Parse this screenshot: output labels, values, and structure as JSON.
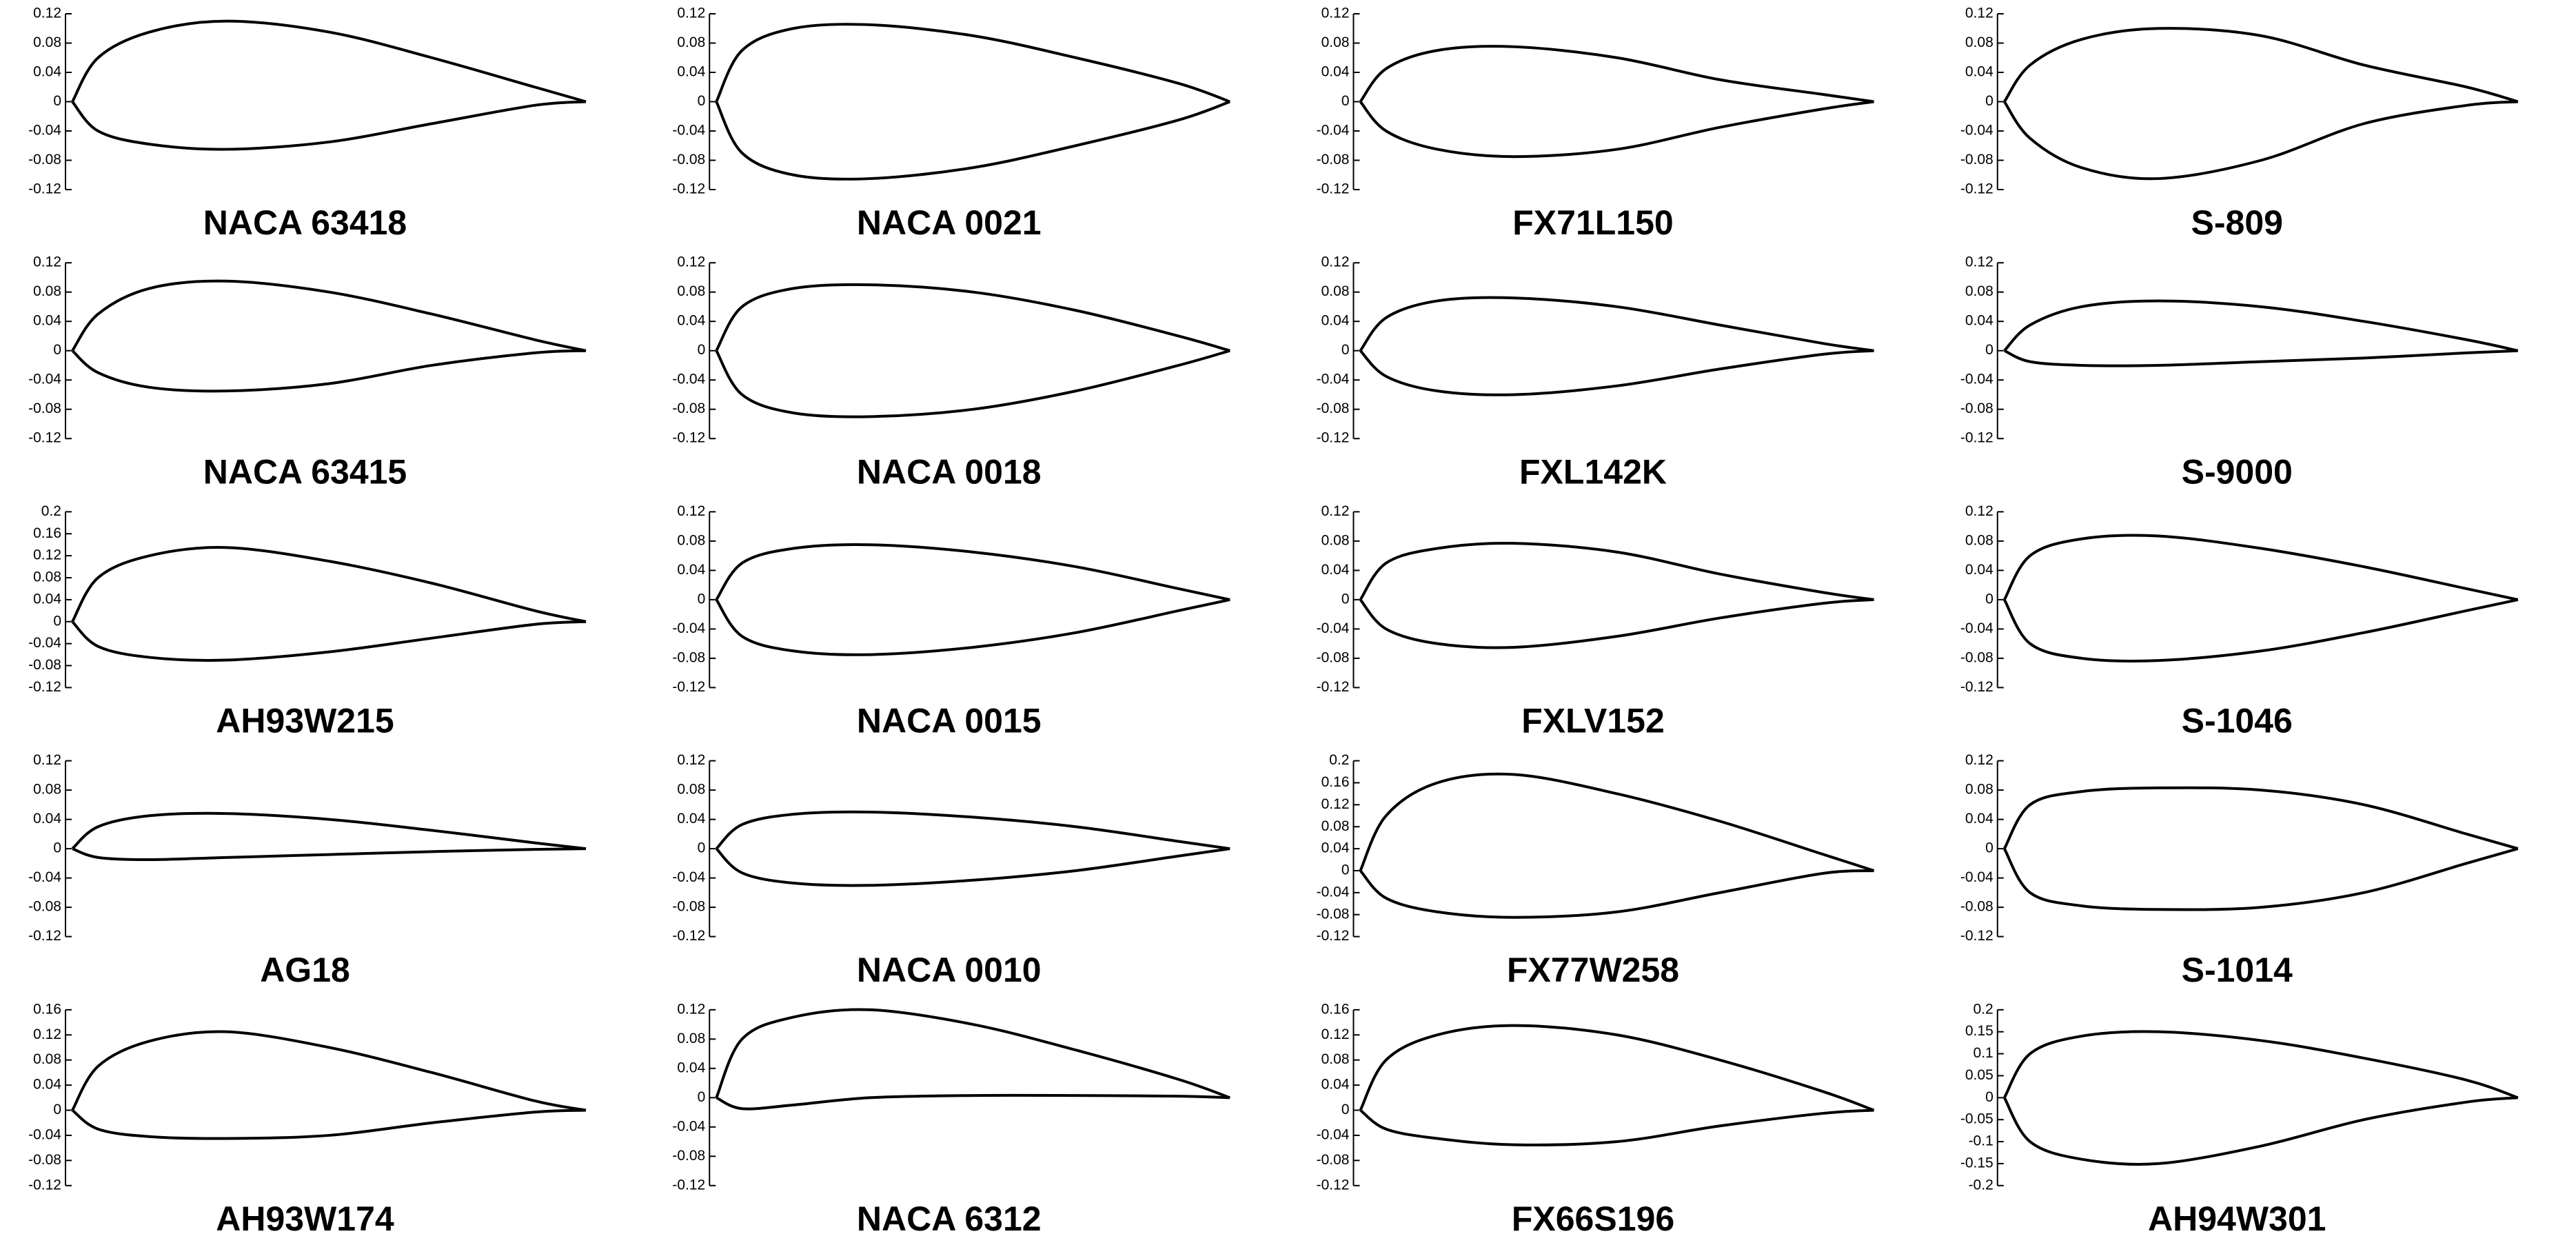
{
  "chart_data": [
    {
      "type": "line",
      "title": "NACA 63418",
      "x": [
        0,
        0.05,
        0.15,
        0.3,
        0.5,
        0.7,
        0.9,
        1
      ],
      "xlim": [
        0,
        1
      ],
      "ylim": [
        -0.12,
        0.12
      ],
      "yticks": [
        0.12,
        0.08,
        0.04,
        0,
        -0.04,
        -0.08,
        -0.12
      ],
      "series": [
        {
          "color": "#000000",
          "values": [
            0,
            0.06,
            0.095,
            0.11,
            0.095,
            0.06,
            0.02,
            0
          ]
        },
        {
          "color": "#000000",
          "values": [
            0,
            -0.04,
            -0.058,
            -0.065,
            -0.055,
            -0.03,
            -0.005,
            0
          ]
        }
      ]
    },
    {
      "type": "line",
      "title": "NACA 0021",
      "x": [
        0,
        0.05,
        0.15,
        0.3,
        0.5,
        0.7,
        0.9,
        1
      ],
      "xlim": [
        0,
        1
      ],
      "ylim": [
        -0.12,
        0.12
      ],
      "yticks": [
        0.12,
        0.08,
        0.04,
        0,
        -0.04,
        -0.08,
        -0.12
      ],
      "series": [
        {
          "color": "#000000",
          "values": [
            0,
            0.07,
            0.1,
            0.105,
            0.09,
            0.06,
            0.025,
            0
          ]
        },
        {
          "color": "#000000",
          "values": [
            0,
            -0.07,
            -0.1,
            -0.105,
            -0.09,
            -0.06,
            -0.025,
            0
          ]
        }
      ]
    },
    {
      "type": "line",
      "title": "FX71L150",
      "x": [
        0,
        0.05,
        0.15,
        0.3,
        0.5,
        0.7,
        0.9,
        1
      ],
      "xlim": [
        0,
        1
      ],
      "ylim": [
        -0.12,
        0.12
      ],
      "yticks": [
        0.12,
        0.08,
        0.04,
        0,
        -0.04,
        -0.08,
        -0.12
      ],
      "series": [
        {
          "color": "#000000",
          "values": [
            0,
            0.045,
            0.07,
            0.075,
            0.06,
            0.03,
            0.01,
            0
          ]
        },
        {
          "color": "#000000",
          "values": [
            0,
            -0.04,
            -0.065,
            -0.075,
            -0.065,
            -0.035,
            -0.01,
            0
          ]
        }
      ]
    },
    {
      "type": "line",
      "title": "S-809",
      "x": [
        0,
        0.05,
        0.15,
        0.3,
        0.5,
        0.7,
        0.9,
        1
      ],
      "xlim": [
        0,
        1
      ],
      "ylim": [
        -0.12,
        0.12
      ],
      "yticks": [
        0.12,
        0.08,
        0.04,
        0,
        -0.04,
        -0.08,
        -0.12
      ],
      "series": [
        {
          "color": "#000000",
          "values": [
            0,
            0.05,
            0.085,
            0.1,
            0.09,
            0.05,
            0.02,
            0
          ]
        },
        {
          "color": "#000000",
          "values": [
            0,
            -0.05,
            -0.09,
            -0.105,
            -0.08,
            -0.03,
            -0.005,
            0
          ]
        }
      ]
    },
    {
      "type": "line",
      "title": "NACA 63415",
      "x": [
        0,
        0.05,
        0.15,
        0.3,
        0.5,
        0.7,
        0.9,
        1
      ],
      "xlim": [
        0,
        1
      ],
      "ylim": [
        -0.12,
        0.12
      ],
      "yticks": [
        0.12,
        0.08,
        0.04,
        0,
        -0.04,
        -0.08,
        -0.12
      ],
      "series": [
        {
          "color": "#000000",
          "values": [
            0,
            0.05,
            0.085,
            0.095,
            0.08,
            0.05,
            0.015,
            0
          ]
        },
        {
          "color": "#000000",
          "values": [
            0,
            -0.03,
            -0.05,
            -0.055,
            -0.045,
            -0.02,
            -0.003,
            0
          ]
        }
      ]
    },
    {
      "type": "line",
      "title": "NACA 0018",
      "x": [
        0,
        0.05,
        0.15,
        0.3,
        0.5,
        0.7,
        0.9,
        1
      ],
      "xlim": [
        0,
        1
      ],
      "ylim": [
        -0.12,
        0.12
      ],
      "yticks": [
        0.12,
        0.08,
        0.04,
        0,
        -0.04,
        -0.08,
        -0.12
      ],
      "series": [
        {
          "color": "#000000",
          "values": [
            0,
            0.06,
            0.085,
            0.09,
            0.08,
            0.055,
            0.02,
            0
          ]
        },
        {
          "color": "#000000",
          "values": [
            0,
            -0.06,
            -0.085,
            -0.09,
            -0.08,
            -0.055,
            -0.02,
            0
          ]
        }
      ]
    },
    {
      "type": "line",
      "title": "FXL142K",
      "x": [
        0,
        0.05,
        0.15,
        0.3,
        0.5,
        0.7,
        0.9,
        1
      ],
      "xlim": [
        0,
        1
      ],
      "ylim": [
        -0.12,
        0.12
      ],
      "yticks": [
        0.12,
        0.08,
        0.04,
        0,
        -0.04,
        -0.08,
        -0.12
      ],
      "series": [
        {
          "color": "#000000",
          "values": [
            0,
            0.045,
            0.068,
            0.072,
            0.06,
            0.035,
            0.01,
            0
          ]
        },
        {
          "color": "#000000",
          "values": [
            0,
            -0.035,
            -0.055,
            -0.06,
            -0.048,
            -0.025,
            -0.005,
            0
          ]
        }
      ]
    },
    {
      "type": "line",
      "title": "S-9000",
      "x": [
        0,
        0.05,
        0.15,
        0.3,
        0.5,
        0.7,
        0.9,
        1
      ],
      "xlim": [
        0,
        1
      ],
      "ylim": [
        -0.12,
        0.12
      ],
      "yticks": [
        0.12,
        0.08,
        0.04,
        0,
        -0.04,
        -0.08,
        -0.12
      ],
      "series": [
        {
          "color": "#000000",
          "values": [
            0,
            0.035,
            0.06,
            0.068,
            0.06,
            0.04,
            0.015,
            0
          ]
        },
        {
          "color": "#000000",
          "values": [
            0,
            -0.015,
            -0.02,
            -0.02,
            -0.015,
            -0.01,
            -0.003,
            0
          ]
        }
      ]
    },
    {
      "type": "line",
      "title": "AH93W215",
      "x": [
        0,
        0.05,
        0.15,
        0.3,
        0.5,
        0.7,
        0.9,
        1
      ],
      "xlim": [
        0,
        1
      ],
      "ylim": [
        -0.12,
        0.2
      ],
      "yticks": [
        0.2,
        0.16,
        0.12,
        0.08,
        0.04,
        0,
        -0.04,
        -0.08,
        -0.12
      ],
      "series": [
        {
          "color": "#000000",
          "values": [
            0,
            0.08,
            0.12,
            0.135,
            0.11,
            0.07,
            0.02,
            0
          ]
        },
        {
          "color": "#000000",
          "values": [
            0,
            -0.045,
            -0.065,
            -0.07,
            -0.055,
            -0.03,
            -0.005,
            0
          ]
        }
      ]
    },
    {
      "type": "line",
      "title": "NACA 0015",
      "x": [
        0,
        0.05,
        0.15,
        0.3,
        0.5,
        0.7,
        0.9,
        1
      ],
      "xlim": [
        0,
        1
      ],
      "ylim": [
        -0.12,
        0.12
      ],
      "yticks": [
        0.12,
        0.08,
        0.04,
        0,
        -0.04,
        -0.08,
        -0.12
      ],
      "series": [
        {
          "color": "#000000",
          "values": [
            0,
            0.05,
            0.07,
            0.075,
            0.065,
            0.045,
            0.015,
            0
          ]
        },
        {
          "color": "#000000",
          "values": [
            0,
            -0.05,
            -0.07,
            -0.075,
            -0.065,
            -0.045,
            -0.015,
            0
          ]
        }
      ]
    },
    {
      "type": "line",
      "title": "FXLV152",
      "x": [
        0,
        0.05,
        0.15,
        0.3,
        0.5,
        0.7,
        0.9,
        1
      ],
      "xlim": [
        0,
        1
      ],
      "ylim": [
        -0.12,
        0.12
      ],
      "yticks": [
        0.12,
        0.08,
        0.04,
        0,
        -0.04,
        -0.08,
        -0.12
      ],
      "series": [
        {
          "color": "#000000",
          "values": [
            0,
            0.05,
            0.07,
            0.077,
            0.065,
            0.035,
            0.01,
            0
          ]
        },
        {
          "color": "#000000",
          "values": [
            0,
            -0.04,
            -0.06,
            -0.065,
            -0.05,
            -0.025,
            -0.005,
            0
          ]
        }
      ]
    },
    {
      "type": "line",
      "title": "S-1046",
      "x": [
        0,
        0.05,
        0.15,
        0.3,
        0.5,
        0.7,
        0.9,
        1
      ],
      "xlim": [
        0,
        1
      ],
      "ylim": [
        -0.12,
        0.12
      ],
      "yticks": [
        0.12,
        0.08,
        0.04,
        0,
        -0.04,
        -0.08,
        -0.12
      ],
      "series": [
        {
          "color": "#000000",
          "values": [
            0,
            0.06,
            0.083,
            0.087,
            0.07,
            0.045,
            0.015,
            0
          ]
        },
        {
          "color": "#000000",
          "values": [
            0,
            -0.06,
            -0.08,
            -0.083,
            -0.07,
            -0.045,
            -0.015,
            0
          ]
        }
      ]
    },
    {
      "type": "line",
      "title": "AG18",
      "x": [
        0,
        0.05,
        0.15,
        0.3,
        0.5,
        0.7,
        0.9,
        1
      ],
      "xlim": [
        0,
        1
      ],
      "ylim": [
        -0.12,
        0.12
      ],
      "yticks": [
        0.12,
        0.08,
        0.04,
        0,
        -0.04,
        -0.08,
        -0.12
      ],
      "series": [
        {
          "color": "#000000",
          "values": [
            0,
            0.03,
            0.045,
            0.048,
            0.04,
            0.025,
            0.008,
            0
          ]
        },
        {
          "color": "#000000",
          "values": [
            0,
            -0.012,
            -0.015,
            -0.012,
            -0.008,
            -0.004,
            -0.001,
            0
          ]
        }
      ]
    },
    {
      "type": "line",
      "title": "NACA 0010",
      "x": [
        0,
        0.05,
        0.15,
        0.3,
        0.5,
        0.7,
        0.9,
        1
      ],
      "xlim": [
        0,
        1
      ],
      "ylim": [
        -0.12,
        0.12
      ],
      "yticks": [
        0.12,
        0.08,
        0.04,
        0,
        -0.04,
        -0.08,
        -0.12
      ],
      "series": [
        {
          "color": "#000000",
          "values": [
            0,
            0.033,
            0.047,
            0.05,
            0.043,
            0.03,
            0.01,
            0
          ]
        },
        {
          "color": "#000000",
          "values": [
            0,
            -0.033,
            -0.047,
            -0.05,
            -0.043,
            -0.03,
            -0.01,
            0
          ]
        }
      ]
    },
    {
      "type": "line",
      "title": "FX77W258",
      "x": [
        0,
        0.05,
        0.15,
        0.3,
        0.5,
        0.7,
        0.9,
        1
      ],
      "xlim": [
        0,
        1
      ],
      "ylim": [
        -0.12,
        0.2
      ],
      "yticks": [
        0.2,
        0.16,
        0.12,
        0.08,
        0.04,
        0,
        -0.04,
        -0.08,
        -0.12
      ],
      "series": [
        {
          "color": "#000000",
          "values": [
            0,
            0.1,
            0.16,
            0.175,
            0.14,
            0.09,
            0.03,
            0
          ]
        },
        {
          "color": "#000000",
          "values": [
            0,
            -0.05,
            -0.075,
            -0.085,
            -0.075,
            -0.04,
            -0.005,
            0
          ]
        }
      ]
    },
    {
      "type": "line",
      "title": "S-1014",
      "x": [
        0,
        0.05,
        0.15,
        0.3,
        0.5,
        0.7,
        0.9,
        1
      ],
      "xlim": [
        0,
        1
      ],
      "ylim": [
        -0.12,
        0.12
      ],
      "yticks": [
        0.12,
        0.08,
        0.04,
        0,
        -0.04,
        -0.08,
        -0.12
      ],
      "series": [
        {
          "color": "#000000",
          "values": [
            0,
            0.06,
            0.078,
            0.083,
            0.08,
            0.06,
            0.02,
            0
          ]
        },
        {
          "color": "#000000",
          "values": [
            0,
            -0.06,
            -0.078,
            -0.083,
            -0.08,
            -0.06,
            -0.02,
            0
          ]
        }
      ]
    },
    {
      "type": "line",
      "title": "AH93W174",
      "x": [
        0,
        0.05,
        0.15,
        0.3,
        0.5,
        0.7,
        0.9,
        1
      ],
      "xlim": [
        0,
        1
      ],
      "ylim": [
        -0.12,
        0.16
      ],
      "yticks": [
        0.16,
        0.12,
        0.08,
        0.04,
        0,
        -0.04,
        -0.08,
        -0.12
      ],
      "series": [
        {
          "color": "#000000",
          "values": [
            0,
            0.07,
            0.11,
            0.125,
            0.1,
            0.06,
            0.015,
            0
          ]
        },
        {
          "color": "#000000",
          "values": [
            0,
            -0.03,
            -0.042,
            -0.045,
            -0.04,
            -0.02,
            -0.003,
            0
          ]
        }
      ]
    },
    {
      "type": "line",
      "title": "NACA 6312",
      "x": [
        0,
        0.05,
        0.15,
        0.3,
        0.5,
        0.7,
        0.9,
        1
      ],
      "xlim": [
        0,
        1
      ],
      "ylim": [
        -0.12,
        0.12
      ],
      "yticks": [
        0.12,
        0.08,
        0.04,
        0,
        -0.04,
        -0.08,
        -0.12
      ],
      "series": [
        {
          "color": "#000000",
          "values": [
            0,
            0.08,
            0.11,
            0.12,
            0.1,
            0.065,
            0.025,
            0
          ]
        },
        {
          "color": "#000000",
          "values": [
            0,
            -0.015,
            -0.01,
            0,
            0.003,
            0.003,
            0.002,
            0
          ]
        }
      ]
    },
    {
      "type": "line",
      "title": "FX66S196",
      "x": [
        0,
        0.05,
        0.15,
        0.3,
        0.5,
        0.7,
        0.9,
        1
      ],
      "xlim": [
        0,
        1
      ],
      "ylim": [
        -0.12,
        0.16
      ],
      "yticks": [
        0.16,
        0.12,
        0.08,
        0.04,
        0,
        -0.04,
        -0.08,
        -0.12
      ],
      "series": [
        {
          "color": "#000000",
          "values": [
            0,
            0.08,
            0.12,
            0.135,
            0.12,
            0.08,
            0.03,
            0
          ]
        },
        {
          "color": "#000000",
          "values": [
            0,
            -0.03,
            -0.045,
            -0.055,
            -0.05,
            -0.025,
            -0.005,
            0
          ]
        }
      ]
    },
    {
      "type": "line",
      "title": "AH94W301",
      "x": [
        0,
        0.05,
        0.15,
        0.3,
        0.5,
        0.7,
        0.9,
        1
      ],
      "xlim": [
        0,
        1
      ],
      "ylim": [
        -0.2,
        0.2
      ],
      "yticks": [
        0.2,
        0.15,
        0.1,
        0.05,
        0,
        -0.05,
        -0.1,
        -0.15,
        -0.2
      ],
      "series": [
        {
          "color": "#000000",
          "values": [
            0,
            0.1,
            0.14,
            0.15,
            0.13,
            0.09,
            0.04,
            0
          ]
        },
        {
          "color": "#000000",
          "values": [
            0,
            -0.1,
            -0.14,
            -0.15,
            -0.11,
            -0.05,
            -0.01,
            0
          ]
        }
      ]
    }
  ]
}
